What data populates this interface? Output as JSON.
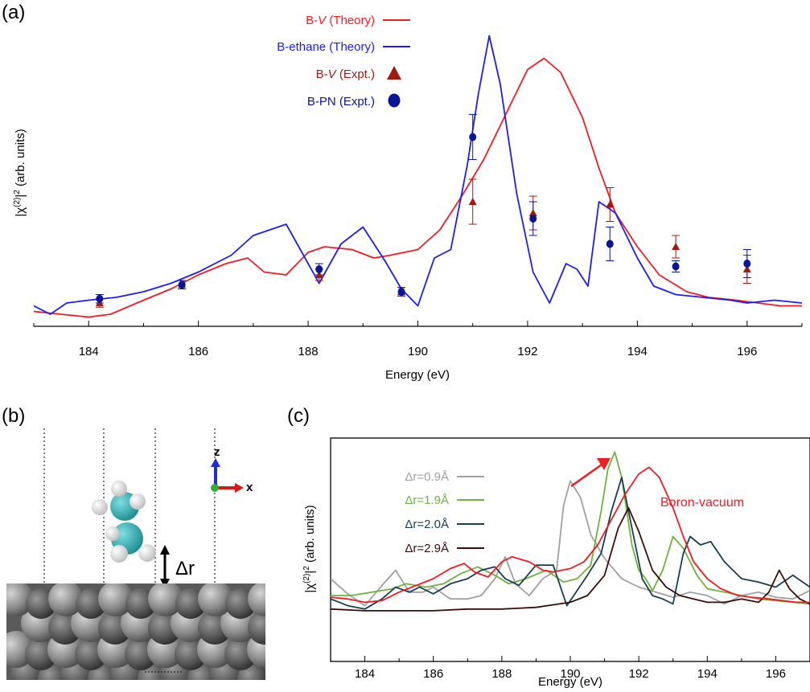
{
  "panel_labels": {
    "a": "(a)",
    "b": "(b)",
    "c": "(c)"
  },
  "chart_data": [
    {
      "id": "a",
      "type": "line",
      "xlabel": "Energy (eV)",
      "ylabel": "|χ(2)|2 (arb. units)",
      "ylabel_parts": {
        "base": "|χ",
        "sup1": "(2)",
        "mid": "|",
        "sup2": "2",
        "tail": " (arb. units)"
      },
      "xlim": [
        183,
        197
      ],
      "ylim": [
        0,
        100
      ],
      "xticks": [
        184,
        186,
        188,
        190,
        192,
        194,
        196
      ],
      "legend": [
        {
          "label_prefix": "B-",
          "label_italic": "V",
          "label_suffix": " (Theory)",
          "color": "#ee1c25",
          "marker": "line"
        },
        {
          "label_prefix": "B-ethane (Theory)",
          "label_italic": "",
          "label_suffix": "",
          "color": "#1d1df0",
          "marker": "line"
        },
        {
          "label_prefix": "B-",
          "label_italic": "V",
          "label_suffix": " (Expt.)",
          "color": "#9e1b12",
          "marker": "triangle"
        },
        {
          "label_prefix": "B-PN (Expt.)",
          "label_italic": "",
          "label_suffix": "",
          "color": "#0b1595",
          "marker": "circle"
        }
      ],
      "series": [
        {
          "name": "B-V (Theory)",
          "color": "#ee1c25",
          "x": [
            183.0,
            183.5,
            184.0,
            184.4,
            185.0,
            185.5,
            186.0,
            186.5,
            186.9,
            187.2,
            187.6,
            188.0,
            188.3,
            188.8,
            189.2,
            189.5,
            190.0,
            190.4,
            190.8,
            191.2,
            191.6,
            192.0,
            192.3,
            192.6,
            193.0,
            193.3,
            193.6,
            194.0,
            194.4,
            194.9,
            195.3,
            195.8,
            196.2,
            196.6,
            197.0
          ],
          "y": [
            3,
            2,
            1,
            2,
            7,
            11,
            16,
            20,
            22,
            17,
            16,
            24,
            26,
            25,
            22,
            23,
            25,
            32,
            44,
            57,
            73,
            89,
            93,
            88,
            72,
            54,
            38,
            26,
            16,
            10,
            8,
            7,
            6,
            5,
            5
          ]
        },
        {
          "name": "B-ethane (Theory)",
          "color": "#1d1df0",
          "x": [
            183.0,
            183.3,
            183.6,
            184.0,
            184.5,
            185.0,
            185.5,
            186.0,
            186.6,
            187.0,
            187.6,
            188.0,
            188.2,
            188.6,
            189.0,
            189.4,
            189.7,
            190.0,
            190.3,
            190.6,
            190.9,
            191.1,
            191.3,
            191.5,
            191.8,
            192.1,
            192.4,
            192.7,
            192.9,
            193.1,
            193.3,
            193.6,
            194.0,
            194.3,
            194.7,
            195.2,
            195.7,
            196.0,
            196.5,
            197.0
          ],
          "y": [
            5,
            2,
            6,
            7,
            8,
            10,
            13,
            17,
            23,
            30,
            34,
            20,
            13,
            27,
            33,
            21,
            11,
            5,
            22,
            25,
            55,
            80,
            101,
            84,
            45,
            17,
            6,
            20,
            18,
            12,
            42,
            38,
            22,
            12,
            9,
            8,
            7,
            6,
            7,
            6
          ]
        }
      ],
      "expt_triangle": {
        "name": "B-V (Expt.)",
        "color": "#9e1b12",
        "x": [
          184.2,
          185.7,
          188.2,
          189.7,
          191.0,
          192.1,
          193.5,
          194.7,
          196.0
        ],
        "y": [
          6.0,
          12.5,
          16.0,
          10.0,
          42.0,
          38.0,
          41.0,
          26.0,
          18.0
        ],
        "err": [
          1.5,
          1.5,
          2.0,
          1.5,
          8.0,
          6.0,
          6.0,
          4.0,
          5.0
        ]
      },
      "expt_circle": {
        "name": "B-PN (Expt.)",
        "color": "#0b1595",
        "x": [
          184.2,
          185.7,
          188.2,
          189.7,
          191.0,
          192.1,
          193.5,
          194.7,
          196.0
        ],
        "y": [
          7.5,
          12.5,
          18.0,
          10.0,
          65.0,
          36.0,
          27.0,
          19.0,
          20.0
        ],
        "err": [
          1.5,
          1.5,
          2.0,
          1.5,
          8.0,
          6.0,
          6.0,
          2.0,
          5.0
        ]
      }
    },
    {
      "id": "c",
      "type": "line",
      "xlabel": "Energy (eV)",
      "ylabel": "|χ(2)|2 (arb. units)",
      "ylabel_parts": {
        "base": "|χ",
        "sup1": "(2)",
        "mid": "|",
        "sup2": "2",
        "tail": " (arb. units)"
      },
      "xlim": [
        183,
        197
      ],
      "ylim": [
        0,
        100
      ],
      "xticks": [
        184,
        186,
        188,
        190,
        192,
        194,
        196
      ],
      "annotation": {
        "text": "Boron-vacuum",
        "color": "#ee1c25"
      },
      "legend": [
        {
          "label": "Δr=0.9Å",
          "color": "#a0a0a0"
        },
        {
          "label": "Δr=1.9Å",
          "color": "#6fb23d"
        },
        {
          "label": "Δr=2.0Å",
          "color": "#173f4f"
        },
        {
          "label": "Δr=2.9Å",
          "color": "#3b0e0a"
        }
      ],
      "series": [
        {
          "name": "Δr=0.9Å",
          "color": "#a0a0a0",
          "x": [
            183.0,
            183.5,
            184.0,
            184.5,
            184.9,
            185.3,
            185.7,
            186.0,
            186.5,
            187.0,
            187.4,
            187.8,
            188.1,
            188.4,
            188.8,
            189.2,
            189.6,
            189.8,
            190.0,
            190.3,
            190.6,
            191.0,
            191.5,
            192.0,
            192.5,
            193.0,
            193.5,
            194.0,
            194.5,
            195.0,
            195.5,
            196.0,
            196.5,
            197.0
          ],
          "y": [
            20,
            11,
            4,
            16,
            25,
            12,
            12,
            15,
            8,
            8,
            10,
            20,
            33,
            17,
            10,
            20,
            25,
            63,
            78,
            68,
            46,
            32,
            20,
            15,
            12,
            9,
            12,
            10,
            5,
            10,
            12,
            9,
            8,
            13
          ]
        },
        {
          "name": "Δr=1.9Å",
          "color": "#6fb23d",
          "x": [
            183.0,
            183.6,
            184.2,
            184.8,
            185.2,
            185.8,
            186.3,
            186.8,
            187.3,
            187.8,
            188.2,
            188.7,
            189.3,
            189.8,
            190.2,
            190.6,
            190.9,
            191.1,
            191.3,
            191.5,
            191.8,
            192.0,
            192.2,
            192.4,
            192.7,
            193.0,
            193.3,
            193.7,
            194.0,
            194.5,
            195.0,
            195.5,
            196.0,
            196.5,
            197.0
          ],
          "y": [
            10,
            10,
            12,
            14,
            17,
            15,
            17,
            23,
            27,
            22,
            17,
            20,
            25,
            18,
            20,
            28,
            60,
            85,
            95,
            80,
            40,
            25,
            20,
            13,
            25,
            45,
            38,
            22,
            14,
            12,
            10,
            8,
            7,
            6,
            5
          ]
        },
        {
          "name": "Δr=2.0Å",
          "color": "#173f4f",
          "x": [
            183.0,
            183.5,
            184.0,
            184.5,
            184.9,
            185.3,
            185.6,
            186.0,
            186.5,
            187.0,
            187.4,
            187.8,
            188.1,
            188.5,
            189.0,
            189.5,
            189.9,
            190.1,
            190.5,
            190.9,
            191.2,
            191.5,
            191.8,
            192.1,
            192.4,
            192.7,
            193.0,
            193.3,
            193.5,
            193.8,
            194.1,
            194.5,
            195.0,
            195.5,
            196.0,
            196.5,
            197.0
          ],
          "y": [
            8,
            4,
            2,
            8,
            15,
            12,
            15,
            11,
            17,
            20,
            25,
            27,
            20,
            16,
            28,
            28,
            4,
            10,
            22,
            35,
            60,
            80,
            50,
            20,
            10,
            8,
            5,
            35,
            45,
            40,
            42,
            30,
            20,
            18,
            15,
            22,
            15
          ]
        },
        {
          "name": "Δr=2.9Å",
          "color": "#3b0e0a",
          "x": [
            183.0,
            184.0,
            185.0,
            186.0,
            187.0,
            188.0,
            189.0,
            190.0,
            190.5,
            191.0,
            191.4,
            191.7,
            192.0,
            192.4,
            192.8,
            193.2,
            193.6,
            194.0,
            194.5,
            195.0,
            195.5,
            195.8,
            196.1,
            196.4,
            196.7,
            197.0
          ],
          "y": [
            2,
            1,
            1,
            1,
            2,
            2,
            3,
            6,
            10,
            22,
            50,
            62,
            48,
            25,
            15,
            10,
            8,
            6,
            6,
            8,
            6,
            12,
            25,
            14,
            8,
            5
          ]
        },
        {
          "name": "Boron-vacuum",
          "color": "#ee1c25",
          "x": [
            183.0,
            183.5,
            184.0,
            184.5,
            185.0,
            185.5,
            186.0,
            186.5,
            186.9,
            187.2,
            187.6,
            188.0,
            188.3,
            188.8,
            189.2,
            189.5,
            190.0,
            190.4,
            190.8,
            191.2,
            191.6,
            192.0,
            192.3,
            192.6,
            193.0,
            193.3,
            193.6,
            194.0,
            194.4,
            194.9,
            195.3,
            195.8,
            196.2,
            196.6,
            197.0
          ],
          "y": [
            9,
            8,
            6,
            7,
            12,
            16,
            20,
            26,
            29,
            24,
            21,
            30,
            33,
            30,
            25,
            24,
            26,
            30,
            40,
            55,
            70,
            82,
            86,
            80,
            62,
            45,
            30,
            20,
            14,
            10,
            9,
            8,
            7,
            6,
            6
          ]
        }
      ]
    }
  ],
  "panel_b": {
    "delta_r_label": "Δr",
    "axis_z": "z",
    "axis_x": "x"
  }
}
